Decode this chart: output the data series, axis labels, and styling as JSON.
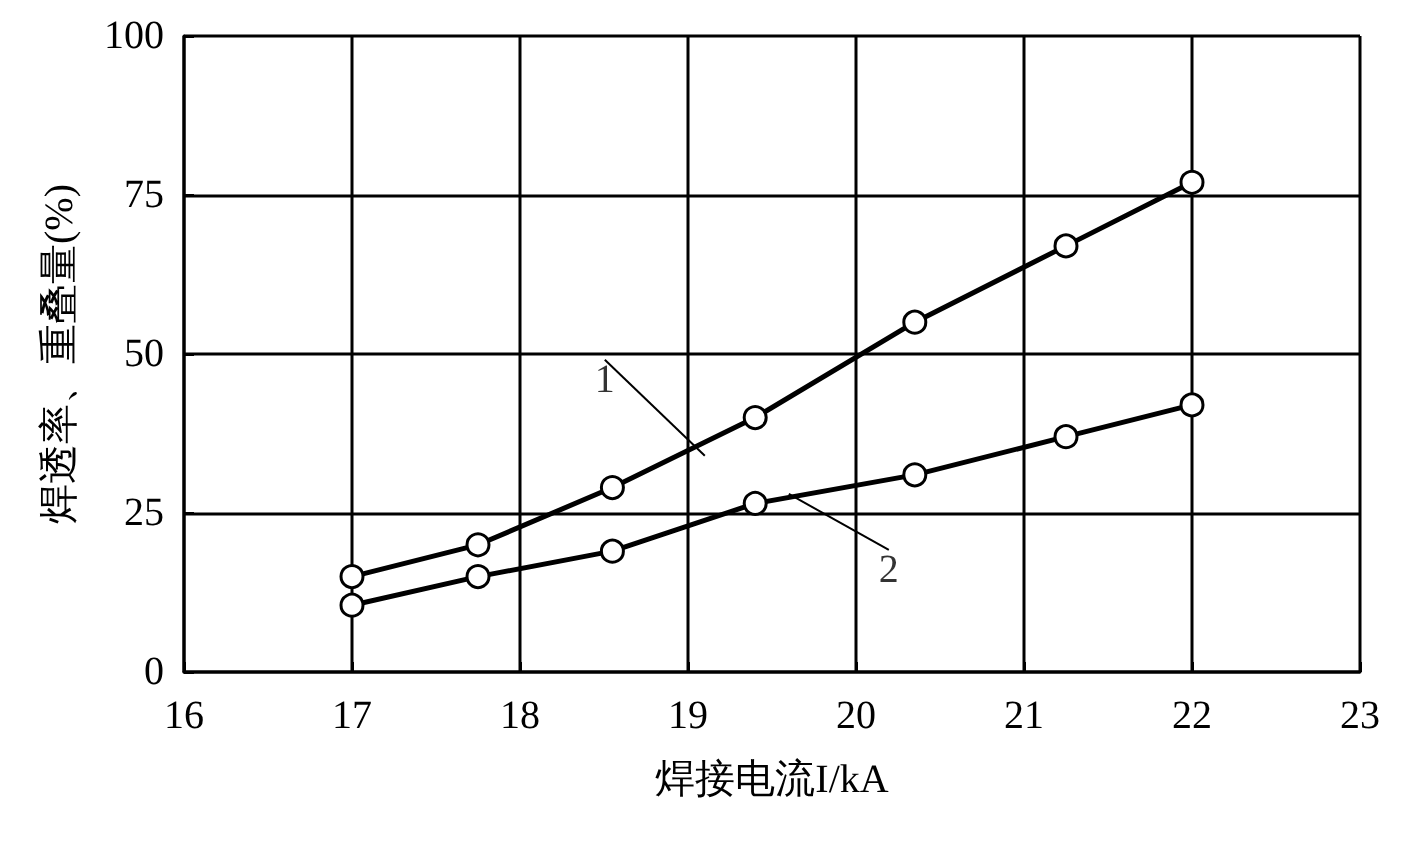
{
  "chart_data": {
    "type": "line",
    "xlabel": "焊接电流I/kA",
    "ylabel": "焊透率、重叠量(%)",
    "xlim": [
      16,
      23
    ],
    "xticks": [
      16,
      17,
      18,
      19,
      20,
      21,
      22,
      23
    ],
    "ylim": [
      0,
      100
    ],
    "yticks": [
      0,
      25,
      50,
      75,
      100
    ],
    "grid": true,
    "marker": "circle",
    "line_style": "solid",
    "series": [
      {
        "color": "#000000",
        "x": [
          17,
          17.75,
          18.55,
          19.4,
          20.35,
          21.25,
          22
        ],
        "values": [
          15,
          20,
          29,
          40,
          55,
          67,
          77
        ]
      },
      {
        "color": "#000000",
        "x": [
          17,
          17.75,
          18.55,
          19.4,
          20.35,
          21.25,
          22
        ],
        "values": [
          10.5,
          15,
          19,
          26.5,
          31,
          37,
          42
        ]
      }
    ],
    "annotations": [
      {
        "text": "1",
        "x": 19.1,
        "y": 34
      },
      {
        "text": "2",
        "x": 19.6,
        "y": 28
      }
    ]
  }
}
